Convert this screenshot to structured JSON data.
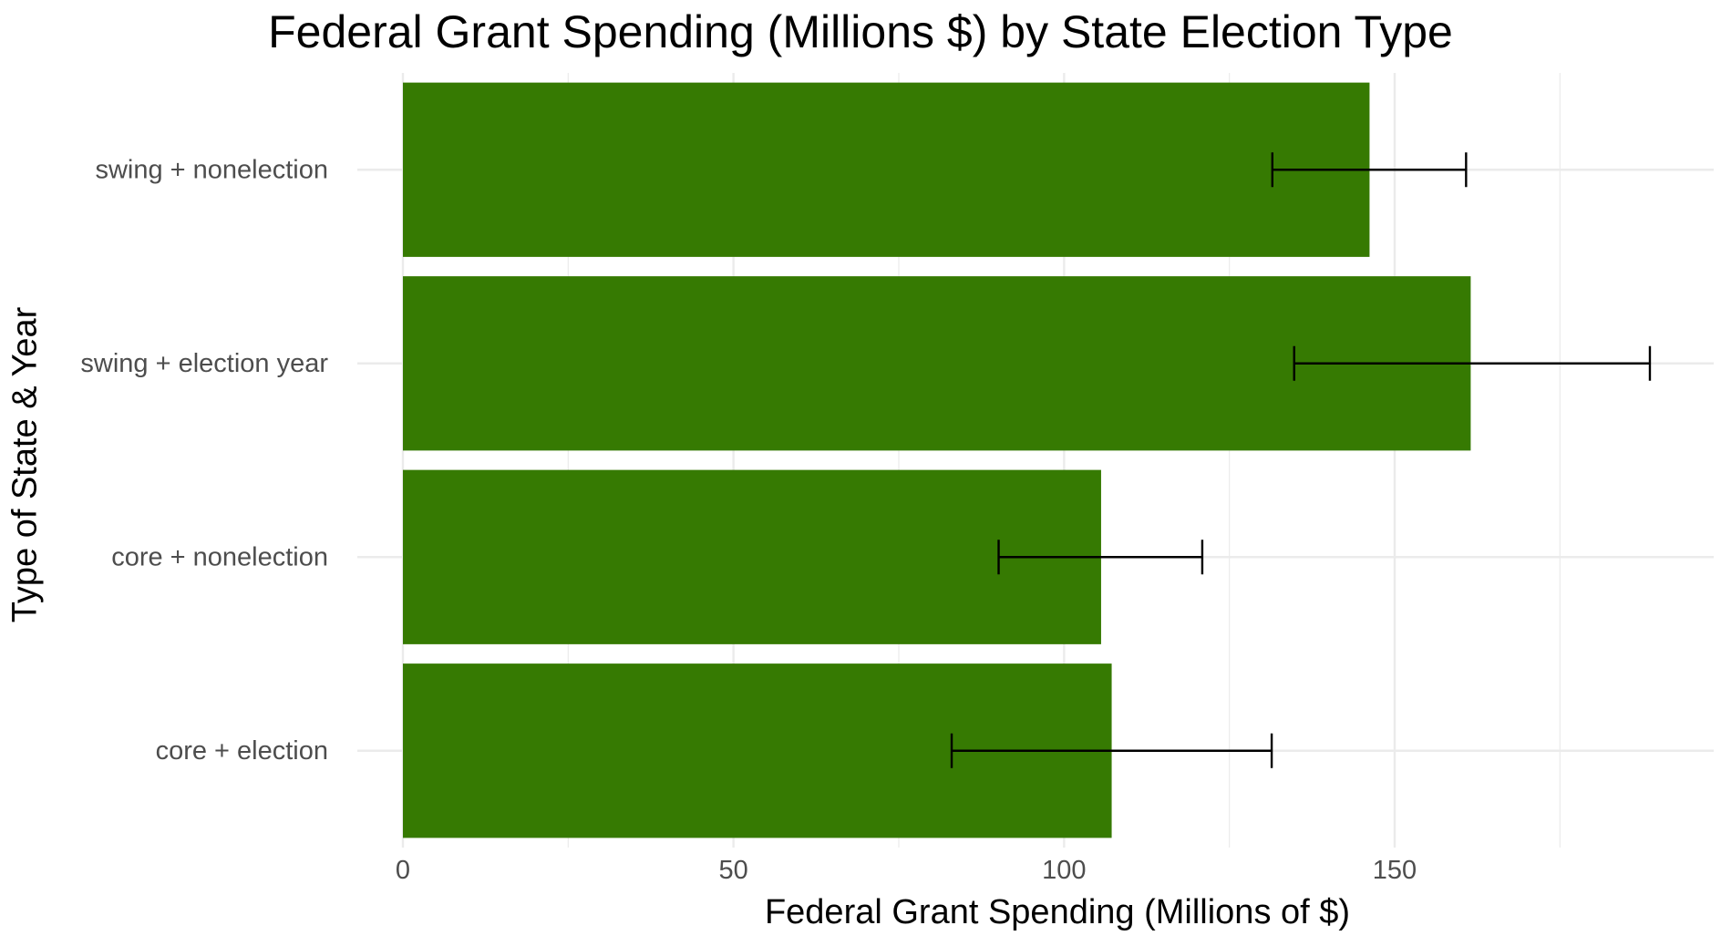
{
  "chart_data": {
    "type": "bar",
    "orientation": "horizontal",
    "title": "Federal Grant Spending (Millions $) by State Election Type",
    "xlabel": "Federal Grant Spending (Millions of $)",
    "ylabel": "Type of State & Year",
    "categories": [
      "core + election",
      "core + nonelection",
      "swing + election year",
      "swing + nonelection"
    ],
    "values": [
      107.2,
      105.6,
      161.5,
      146.2
    ],
    "error_low": [
      83.0,
      90.1,
      134.8,
      131.5
    ],
    "error_high": [
      131.4,
      120.9,
      188.6,
      160.8
    ],
    "xlim": [
      0,
      197
    ],
    "x_ticks": [
      0,
      50,
      100,
      150
    ],
    "x_minor_ticks": [
      25,
      75,
      125,
      175
    ],
    "grid": true,
    "colors": {
      "bar": "#367a02",
      "error_bar": "#000000",
      "grid": "#ebebeb"
    }
  }
}
